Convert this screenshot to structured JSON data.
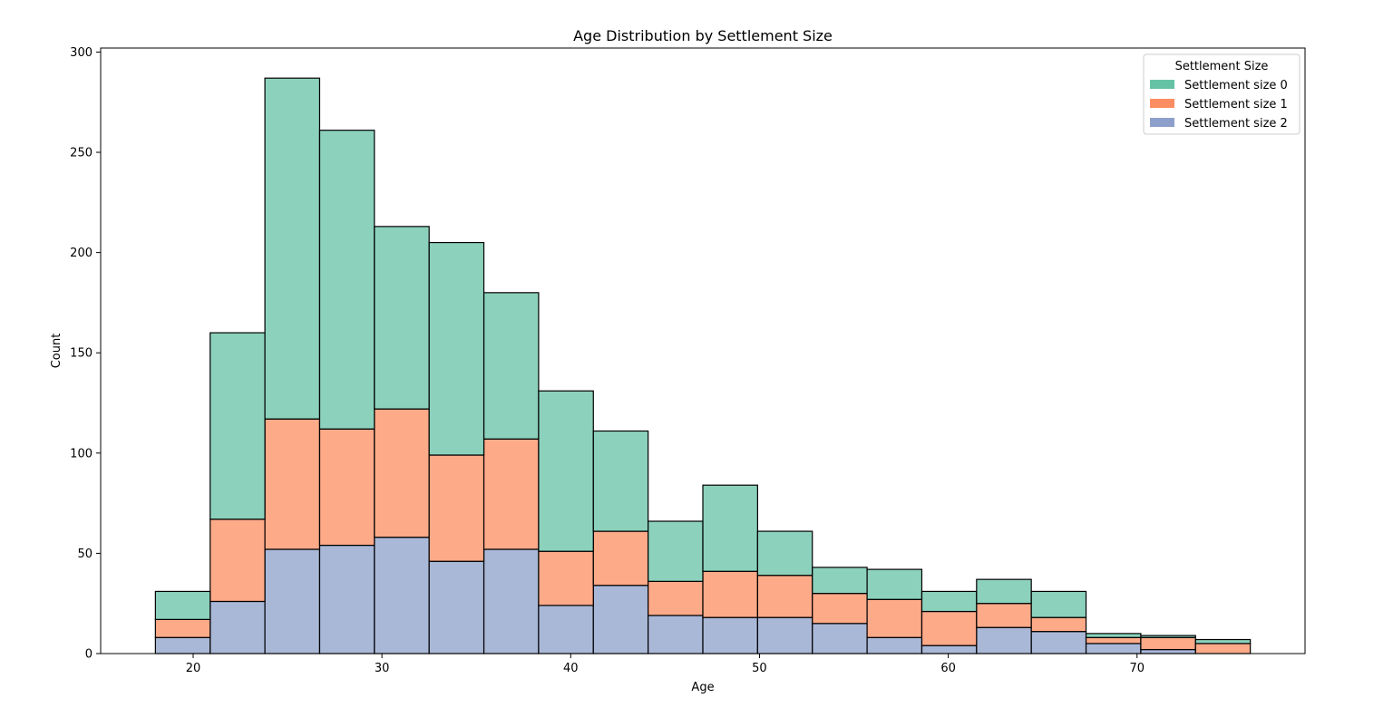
{
  "chart_data": {
    "type": "bar",
    "title": "Age Distribution by Settlement Size",
    "xlabel": "Age",
    "ylabel": "Count",
    "stacked": true,
    "histogram": true,
    "xlim": [
      15.1,
      78.9
    ],
    "ylim": [
      0,
      302
    ],
    "xticks": [
      20,
      30,
      40,
      50,
      60,
      70
    ],
    "yticks": [
      0,
      50,
      100,
      150,
      200,
      250,
      300
    ],
    "bin_edges": [
      18.0,
      20.9,
      23.8,
      26.7,
      29.6,
      32.5,
      35.4,
      38.3,
      41.2,
      44.1,
      47.0,
      49.9,
      52.8,
      55.7,
      58.6,
      61.5,
      64.4,
      67.3,
      70.2,
      73.1,
      76.0
    ],
    "legend": {
      "title": "Settlement Size",
      "position": "top-right"
    },
    "series": [
      {
        "name": "Settlement size 2",
        "color": "#8da0cb",
        "values": [
          8,
          26,
          52,
          54,
          58,
          46,
          52,
          24,
          34,
          19,
          18,
          18,
          15,
          8,
          4,
          13,
          11,
          5,
          2,
          0
        ]
      },
      {
        "name": "Settlement size 1",
        "color": "#fc8d62",
        "values": [
          9,
          41,
          65,
          58,
          64,
          53,
          55,
          27,
          27,
          17,
          23,
          21,
          15,
          19,
          17,
          12,
          7,
          3,
          6,
          5
        ]
      },
      {
        "name": "Settlement size 0",
        "color": "#66c2a5",
        "values": [
          14,
          93,
          170,
          149,
          91,
          106,
          73,
          80,
          50,
          30,
          43,
          22,
          13,
          15,
          10,
          12,
          13,
          2,
          1,
          2
        ]
      }
    ],
    "legend_order": [
      "Settlement size 0",
      "Settlement size 1",
      "Settlement size 2"
    ]
  }
}
